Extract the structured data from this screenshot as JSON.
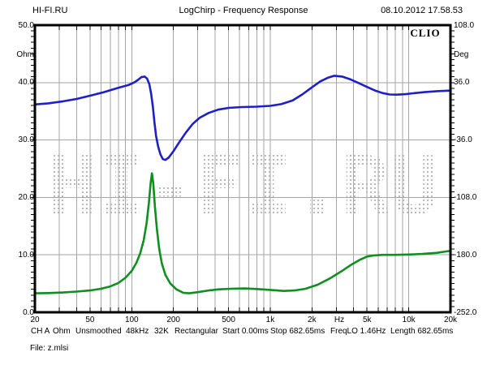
{
  "header": {
    "site": "HI-FI.RU",
    "title": "LogChirp - Frequency Response",
    "datetime": "08.10.2012 17.58.53"
  },
  "branding": "CLIO",
  "watermark": "HI-FI.RU",
  "status_line": {
    "tokens": [
      "CH A",
      "Ohm",
      "Unsmoothed",
      "48kHz",
      "32K",
      "Rectangular",
      "Start 0.00ms",
      "Stop 682.65ms",
      "FreqLO 1.46Hz",
      "Length 682.65ms"
    ]
  },
  "file_line": "File: z.mlsi",
  "colors": {
    "impedance_curve": "#0f8f1f",
    "phase_curve": "#1f1fc8",
    "grid": "#a6a6a6",
    "watermark_dots": "#b4b4b4",
    "frame": "#000000"
  },
  "chart_data": {
    "type": "line",
    "title": "LogChirp - Frequency Response",
    "x_axis": {
      "scale": "log",
      "min": 20,
      "max": 20000,
      "unit": "Hz",
      "tick_labels": [
        "20",
        "50",
        "100",
        "200",
        "500",
        "1k",
        "2k",
        "5k",
        "10k",
        "20k"
      ],
      "tick_values": [
        20,
        50,
        100,
        200,
        500,
        1000,
        2000,
        5000,
        10000,
        20000
      ]
    },
    "y_left": {
      "label": "Ohm",
      "min": 0,
      "max": 50,
      "tick_step": 10,
      "tick_labels": [
        "50.0",
        "40.0",
        "30.0",
        "20.0",
        "10.0",
        "0.0"
      ]
    },
    "y_right": {
      "label": "Deg",
      "min": -252,
      "max": 108,
      "tick_step": 72,
      "tick_labels": [
        "108.0",
        "36.0",
        "-36.0",
        "-108.0",
        "-180.0",
        "-252.0"
      ]
    },
    "grid": true,
    "legend": "none",
    "series": [
      {
        "name": "impedance-magnitude",
        "axis": "left",
        "unit": "Ohm",
        "color": "#0f8f1f",
        "points": [
          [
            20,
            3.3
          ],
          [
            25,
            3.35
          ],
          [
            32,
            3.45
          ],
          [
            40,
            3.6
          ],
          [
            50,
            3.8
          ],
          [
            60,
            4.1
          ],
          [
            70,
            4.5
          ],
          [
            80,
            5.1
          ],
          [
            90,
            6.0
          ],
          [
            100,
            7.2
          ],
          [
            108,
            8.6
          ],
          [
            115,
            10.2
          ],
          [
            122,
            12.5
          ],
          [
            128,
            15.5
          ],
          [
            133,
            19.0
          ],
          [
            137,
            22.5
          ],
          [
            140,
            24.2
          ],
          [
            143,
            22.5
          ],
          [
            147,
            18.5
          ],
          [
            152,
            14.5
          ],
          [
            158,
            11.0
          ],
          [
            165,
            8.5
          ],
          [
            175,
            6.5
          ],
          [
            190,
            5.0
          ],
          [
            210,
            4.0
          ],
          [
            235,
            3.4
          ],
          [
            260,
            3.3
          ],
          [
            300,
            3.5
          ],
          [
            360,
            3.8
          ],
          [
            430,
            4.0
          ],
          [
            520,
            4.1
          ],
          [
            650,
            4.15
          ],
          [
            800,
            4.05
          ],
          [
            1000,
            3.9
          ],
          [
            1250,
            3.72
          ],
          [
            1500,
            3.8
          ],
          [
            1800,
            4.1
          ],
          [
            2200,
            4.8
          ],
          [
            2700,
            5.9
          ],
          [
            3200,
            7.0
          ],
          [
            3800,
            8.2
          ],
          [
            4400,
            9.1
          ],
          [
            5000,
            9.7
          ],
          [
            5600,
            9.9
          ],
          [
            6500,
            10.0
          ],
          [
            8000,
            10.0
          ],
          [
            10000,
            10.05
          ],
          [
            12500,
            10.15
          ],
          [
            16000,
            10.35
          ],
          [
            20000,
            10.7
          ]
        ]
      },
      {
        "name": "impedance-phase",
        "axis": "right",
        "unit": "Deg",
        "color": "#1f1fc8",
        "points": [
          [
            20,
            8.5
          ],
          [
            25,
            10
          ],
          [
            32,
            12.5
          ],
          [
            40,
            15.5
          ],
          [
            50,
            19.5
          ],
          [
            63,
            24
          ],
          [
            80,
            29.5
          ],
          [
            95,
            33
          ],
          [
            105,
            36.5
          ],
          [
            112,
            40
          ],
          [
            118,
            43
          ],
          [
            124,
            43.5
          ],
          [
            129,
            41
          ],
          [
            134,
            34
          ],
          [
            138,
            22
          ],
          [
            142,
            6
          ],
          [
            146,
            -14
          ],
          [
            150,
            -31
          ],
          [
            155,
            -44
          ],
          [
            161,
            -54
          ],
          [
            168,
            -60
          ],
          [
            175,
            -61
          ],
          [
            185,
            -58
          ],
          [
            200,
            -50
          ],
          [
            220,
            -39
          ],
          [
            245,
            -27
          ],
          [
            275,
            -16
          ],
          [
            310,
            -8
          ],
          [
            360,
            -2
          ],
          [
            420,
            2
          ],
          [
            500,
            4.3
          ],
          [
            620,
            5.3
          ],
          [
            800,
            5.8
          ],
          [
            1000,
            6.8
          ],
          [
            1200,
            9
          ],
          [
            1450,
            13.5
          ],
          [
            1700,
            21
          ],
          [
            2000,
            30
          ],
          [
            2300,
            37.5
          ],
          [
            2600,
            42
          ],
          [
            2900,
            44.5
          ],
          [
            3300,
            43.5
          ],
          [
            3800,
            40
          ],
          [
            4400,
            35
          ],
          [
            5000,
            30.5
          ],
          [
            5700,
            26
          ],
          [
            6500,
            22.8
          ],
          [
            7300,
            21
          ],
          [
            8200,
            20.8
          ],
          [
            9500,
            21.5
          ],
          [
            11000,
            22.8
          ],
          [
            13000,
            24
          ],
          [
            16000,
            25.2
          ],
          [
            20000,
            26
          ]
        ]
      }
    ]
  }
}
